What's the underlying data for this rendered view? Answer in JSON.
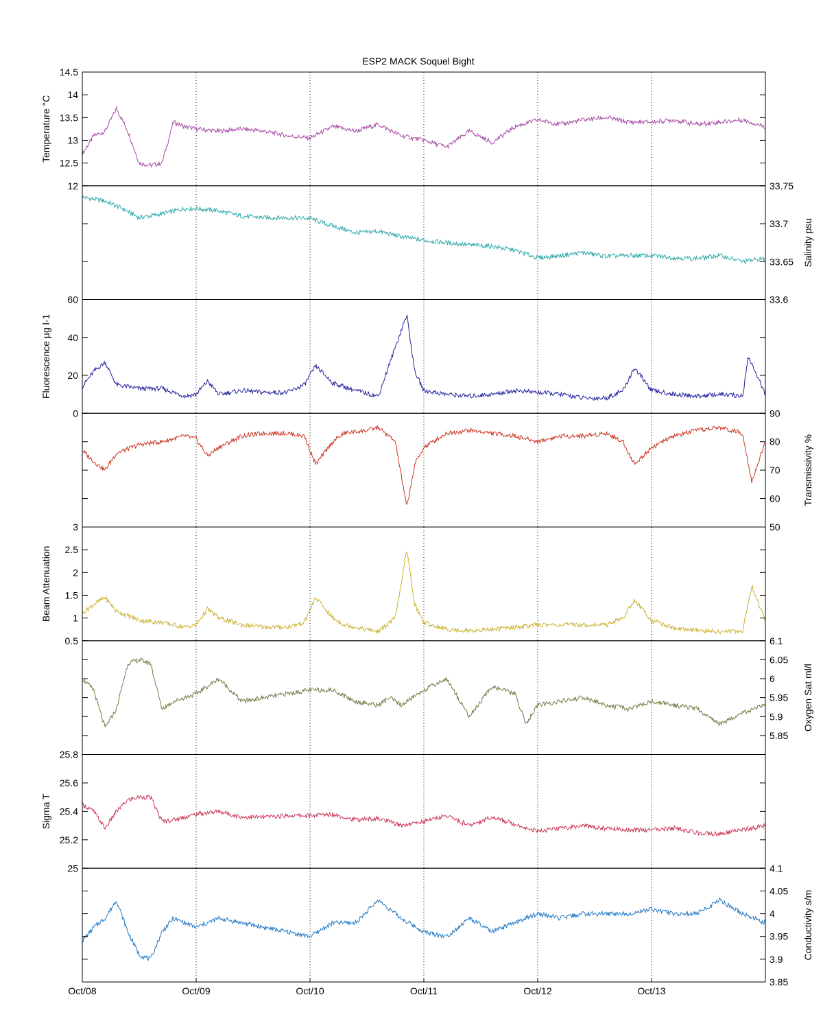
{
  "title": "ESP2 MACK  Soquel Bight",
  "x_tick_labels": [
    "Oct/08",
    "Oct/09",
    "Oct/10",
    "Oct/11",
    "Oct/12",
    "Oct/13"
  ],
  "chart_data": [
    {
      "type": "line",
      "ylabel": "Temperature °C",
      "axis_side": "left",
      "ylim": [
        12,
        14.5
      ],
      "yticks": [
        "12",
        "12.5",
        "13",
        "13.5",
        "14",
        "14.5"
      ],
      "color": "#a64ca6",
      "x_range_days": [
        0,
        6
      ],
      "series": [
        {
          "x": [
            0,
            0.1,
            0.2,
            0.3,
            0.4,
            0.5,
            0.6,
            0.7,
            0.8,
            0.9,
            1,
            1.2,
            1.4,
            1.6,
            1.8,
            2,
            2.2,
            2.4,
            2.6,
            2.8,
            3,
            3.2,
            3.4,
            3.6,
            3.8,
            4,
            4.2,
            4.4,
            4.6,
            4.8,
            5,
            5.2,
            5.4,
            5.6,
            5.8,
            6
          ],
          "values": [
            12.7,
            13.1,
            13.2,
            13.7,
            13.2,
            12.5,
            12.45,
            12.5,
            13.4,
            13.3,
            13.25,
            13.2,
            13.25,
            13.2,
            13.1,
            13.05,
            13.3,
            13.2,
            13.35,
            13.1,
            13.0,
            12.85,
            13.2,
            12.95,
            13.3,
            13.45,
            13.35,
            13.45,
            13.5,
            13.4,
            13.4,
            13.45,
            13.35,
            13.4,
            13.45,
            13.3
          ]
        }
      ]
    },
    {
      "type": "line",
      "ylabel": "Salinity psu",
      "axis_side": "right",
      "ylim": [
        33.6,
        33.75
      ],
      "yticks": [
        "33.6",
        "33.65",
        "33.7",
        "33.75"
      ],
      "color": "#2aa7a7",
      "x_range_days": [
        0,
        6
      ],
      "series": [
        {
          "x": [
            0,
            0.2,
            0.35,
            0.5,
            0.7,
            0.9,
            1,
            1.2,
            1.4,
            1.6,
            1.8,
            2,
            2.2,
            2.4,
            2.6,
            2.8,
            3,
            3.2,
            3.4,
            3.6,
            3.8,
            4,
            4.2,
            4.4,
            4.6,
            4.8,
            5,
            5.2,
            5.4,
            5.6,
            5.8,
            6
          ],
          "values": [
            33.735,
            33.73,
            33.72,
            33.708,
            33.713,
            33.72,
            33.72,
            33.717,
            33.71,
            33.708,
            33.708,
            33.707,
            33.697,
            33.688,
            33.69,
            33.683,
            33.678,
            33.675,
            33.672,
            33.67,
            33.665,
            33.655,
            33.658,
            33.662,
            33.657,
            33.658,
            33.658,
            33.655,
            33.654,
            33.658,
            33.65,
            33.654
          ]
        }
      ]
    },
    {
      "type": "line",
      "ylabel": "Fluorescence µg l-1",
      "axis_side": "left",
      "ylim": [
        0,
        60
      ],
      "yticks": [
        "0",
        "20",
        "40",
        "60"
      ],
      "color": "#1f1f9e",
      "x_range_days": [
        0,
        6
      ],
      "series": [
        {
          "x": [
            0,
            0.1,
            0.2,
            0.3,
            0.5,
            0.7,
            0.9,
            1,
            1.1,
            1.2,
            1.4,
            1.6,
            1.8,
            1.95,
            2.05,
            2.2,
            2.4,
            2.6,
            2.75,
            2.85,
            2.92,
            3,
            3.2,
            3.4,
            3.6,
            3.8,
            4,
            4.2,
            4.4,
            4.6,
            4.75,
            4.85,
            5,
            5.2,
            5.4,
            5.6,
            5.8,
            5.85,
            6
          ],
          "values": [
            14,
            22,
            27,
            15,
            13,
            13,
            9,
            10,
            17,
            10,
            12,
            11,
            11,
            15,
            25,
            16,
            12,
            9,
            35,
            52,
            22,
            12,
            10,
            9,
            10,
            12,
            11,
            10,
            8,
            8,
            12,
            24,
            12,
            10,
            9,
            10,
            9,
            30,
            10
          ]
        }
      ]
    },
    {
      "type": "line",
      "ylabel": "Transmissivity %",
      "axis_side": "right",
      "ylim": [
        50,
        90
      ],
      "yticks": [
        "50",
        "60",
        "70",
        "80",
        "90"
      ],
      "color": "#cc3322",
      "x_range_days": [
        0,
        6
      ],
      "series": [
        {
          "x": [
            0,
            0.1,
            0.2,
            0.3,
            0.5,
            0.7,
            0.9,
            1,
            1.1,
            1.2,
            1.4,
            1.6,
            1.8,
            1.95,
            2.05,
            2.2,
            2.3,
            2.5,
            2.6,
            2.75,
            2.85,
            2.92,
            3,
            3.2,
            3.4,
            3.6,
            3.8,
            4,
            4.2,
            4.4,
            4.6,
            4.75,
            4.85,
            5,
            5.2,
            5.4,
            5.6,
            5.8,
            5.88,
            6
          ],
          "values": [
            77,
            73,
            70,
            76,
            79,
            80,
            82,
            81,
            75,
            78,
            82,
            83,
            83,
            82,
            72,
            80,
            83,
            84,
            85,
            80,
            57,
            72,
            78,
            83,
            84,
            83,
            82,
            80,
            82,
            82,
            83,
            80,
            72,
            78,
            82,
            84,
            85,
            83,
            66,
            80
          ]
        }
      ]
    },
    {
      "type": "line",
      "ylabel": "Beam Attenuation",
      "axis_side": "left",
      "ylim": [
        0.5,
        3
      ],
      "yticks": [
        "0.5",
        "1",
        "1.5",
        "2",
        "2.5",
        "3"
      ],
      "color": "#c8b030",
      "x_range_days": [
        0,
        6
      ],
      "series": [
        {
          "x": [
            0,
            0.1,
            0.2,
            0.3,
            0.5,
            0.7,
            0.9,
            1,
            1.1,
            1.2,
            1.4,
            1.6,
            1.8,
            1.95,
            2.05,
            2.2,
            2.3,
            2.5,
            2.6,
            2.75,
            2.85,
            2.92,
            3,
            3.2,
            3.4,
            3.6,
            3.8,
            4,
            4.2,
            4.4,
            4.6,
            4.75,
            4.85,
            5,
            5.2,
            5.4,
            5.6,
            5.8,
            5.88,
            6
          ],
          "values": [
            1.1,
            1.3,
            1.45,
            1.15,
            0.95,
            0.9,
            0.8,
            0.85,
            1.2,
            1.0,
            0.85,
            0.8,
            0.8,
            0.9,
            1.45,
            1.0,
            0.85,
            0.75,
            0.7,
            1.0,
            2.5,
            1.3,
            0.9,
            0.75,
            0.72,
            0.75,
            0.8,
            0.85,
            0.85,
            0.85,
            0.85,
            1.0,
            1.4,
            0.95,
            0.78,
            0.72,
            0.7,
            0.72,
            1.7,
            0.95
          ]
        }
      ]
    },
    {
      "type": "line",
      "ylabel": "Oxygen Sat ml/l",
      "axis_side": "right",
      "ylim": [
        5.8,
        6.1
      ],
      "yticks": [
        "5.85",
        "5.9",
        "5.95",
        "6",
        "6.05",
        "6.1"
      ],
      "color": "#777744",
      "x_range_days": [
        0,
        6
      ],
      "series": [
        {
          "x": [
            0,
            0.1,
            0.2,
            0.3,
            0.4,
            0.5,
            0.6,
            0.7,
            0.8,
            0.9,
            1,
            1.2,
            1.4,
            1.6,
            1.8,
            2,
            2.2,
            2.4,
            2.6,
            2.7,
            2.8,
            3,
            3.2,
            3.4,
            3.6,
            3.8,
            3.9,
            4,
            4.2,
            4.4,
            4.6,
            4.8,
            5,
            5.2,
            5.4,
            5.6,
            5.8,
            6
          ],
          "values": [
            6.0,
            5.97,
            5.87,
            5.92,
            6.04,
            6.05,
            6.04,
            5.92,
            5.94,
            5.95,
            5.96,
            6.0,
            5.94,
            5.95,
            5.96,
            5.97,
            5.97,
            5.94,
            5.93,
            5.95,
            5.93,
            5.97,
            6.0,
            5.9,
            5.98,
            5.96,
            5.88,
            5.93,
            5.94,
            5.95,
            5.93,
            5.92,
            5.94,
            5.93,
            5.92,
            5.88,
            5.91,
            5.93
          ]
        }
      ]
    },
    {
      "type": "line",
      "ylabel": "Sigma T",
      "axis_side": "left",
      "ylim": [
        25,
        25.8
      ],
      "yticks": [
        "25",
        "25.2",
        "25.4",
        "25.6",
        "25.8"
      ],
      "color": "#cc3355",
      "x_range_days": [
        0,
        6
      ],
      "series": [
        {
          "x": [
            0,
            0.1,
            0.2,
            0.3,
            0.4,
            0.5,
            0.6,
            0.7,
            0.8,
            0.9,
            1,
            1.2,
            1.4,
            1.6,
            1.8,
            2,
            2.2,
            2.4,
            2.6,
            2.8,
            3,
            3.2,
            3.4,
            3.6,
            3.8,
            4,
            4.2,
            4.4,
            4.6,
            4.8,
            5,
            5.2,
            5.4,
            5.6,
            5.8,
            6
          ],
          "values": [
            25.45,
            25.4,
            25.28,
            25.4,
            25.48,
            25.5,
            25.5,
            25.33,
            25.34,
            25.36,
            25.38,
            25.4,
            25.36,
            25.36,
            25.37,
            25.37,
            25.38,
            25.34,
            25.35,
            25.3,
            25.33,
            25.37,
            25.3,
            25.36,
            25.31,
            25.26,
            25.28,
            25.3,
            25.28,
            25.27,
            25.27,
            25.28,
            25.25,
            25.24,
            25.27,
            25.3
          ]
        }
      ]
    },
    {
      "type": "line",
      "ylabel": "Conductivity s/m",
      "axis_side": "right",
      "ylim": [
        3.85,
        4.1
      ],
      "yticks": [
        "3.85",
        "3.9",
        "3.95",
        "4",
        "4.05",
        "4.1"
      ],
      "color": "#1f77c4",
      "x_range_days": [
        0,
        6
      ],
      "series": [
        {
          "x": [
            0,
            0.1,
            0.2,
            0.3,
            0.4,
            0.5,
            0.6,
            0.7,
            0.8,
            0.9,
            1,
            1.2,
            1.4,
            1.6,
            1.8,
            2,
            2.2,
            2.4,
            2.6,
            2.8,
            3,
            3.2,
            3.4,
            3.6,
            3.8,
            4,
            4.2,
            4.4,
            4.6,
            4.8,
            5,
            5.2,
            5.4,
            5.6,
            5.8,
            6
          ],
          "values": [
            3.94,
            3.97,
            3.99,
            4.03,
            3.96,
            3.91,
            3.9,
            3.96,
            3.99,
            3.98,
            3.97,
            3.99,
            3.98,
            3.97,
            3.96,
            3.95,
            3.98,
            3.98,
            4.03,
            3.99,
            3.96,
            3.95,
            3.99,
            3.96,
            3.98,
            4.0,
            3.99,
            4.0,
            4.0,
            4.0,
            4.01,
            4.0,
            4.0,
            4.03,
            4.0,
            3.98
          ]
        }
      ]
    }
  ]
}
